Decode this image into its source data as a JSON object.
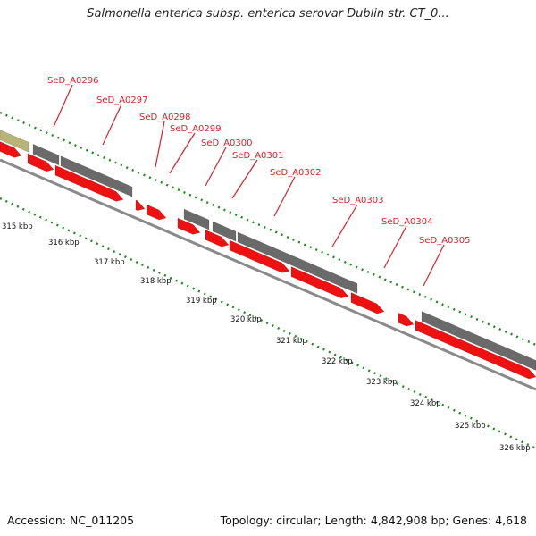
{
  "title": "Salmonella enterica subsp. enterica serovar Dublin str. CT_0...",
  "footer": {
    "accession": "Accession: NC_011205",
    "summary": "Topology: circular; Length: 4,842,908 bp; Genes: 4,618"
  },
  "colors": {
    "gene_fwd": "#ee1111",
    "gene_gray": "#6a6a6a",
    "gene_olive": "#b8b478",
    "tick": "#1f8a1f",
    "backbone": "#8a8a8a",
    "label": "#d8202a"
  },
  "gene_labels": [
    "SeD_A0296",
    "SeD_A0297",
    "SeD_A0298",
    "SeD_A0299",
    "SeD_A0300",
    "SeD_A0301",
    "SeD_A0302",
    "SeD_A0303",
    "SeD_A0304",
    "SeD_A0305"
  ],
  "scale_labels": [
    "315 kbp",
    "316 kbp",
    "317 kbp",
    "318 kbp",
    "319 kbp",
    "320 kbp",
    "321 kbp",
    "322 kbp",
    "323 kbp",
    "324 kbp",
    "325 kbp",
    "326 kbp"
  ]
}
